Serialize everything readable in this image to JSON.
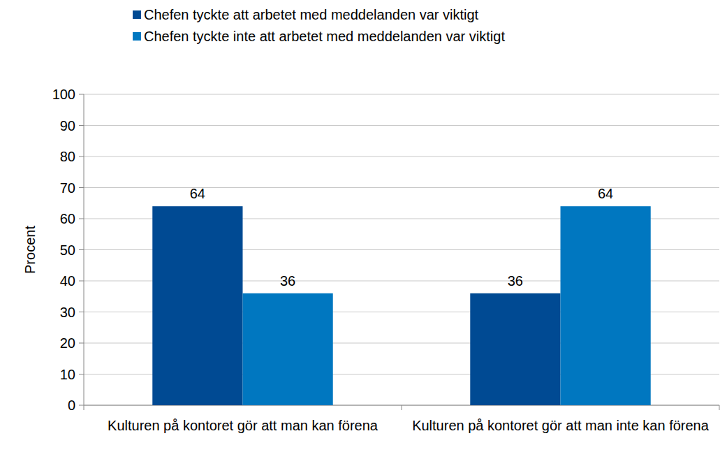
{
  "chart_data": {
    "type": "bar",
    "y_label": "Procent",
    "categories": [
      "Kulturen på kontoret gör att man kan förena",
      "Kulturen på kontoret gör att man inte kan förena"
    ],
    "series": [
      {
        "name": "Chefen tyckte att arbetet med meddelanden var viktigt",
        "color": "#004a93",
        "values": [
          64,
          36
        ]
      },
      {
        "name": "Chefen tyckte inte att arbetet med meddelanden var viktigt",
        "color": "#0077c0",
        "values": [
          36,
          64
        ]
      }
    ],
    "ylim": [
      0,
      100
    ],
    "yticks": [
      0,
      10,
      20,
      30,
      40,
      50,
      60,
      70,
      80,
      90,
      100
    ],
    "grid": true,
    "data_labels": true,
    "legend": "top"
  }
}
